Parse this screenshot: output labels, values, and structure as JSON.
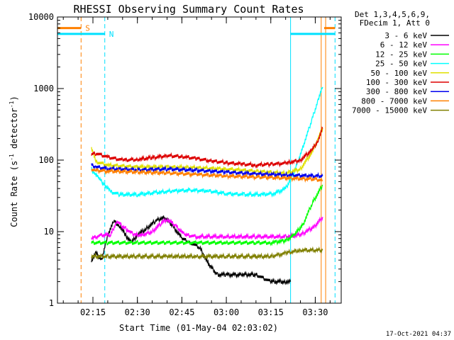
{
  "chart_data": {
    "type": "line",
    "title": "RHESSI Observing Summary Count Rates",
    "xlabel": "Start Time (01-May-04 02:03:02)",
    "ylabel_main": "Count Rate (s",
    "ylabel_exp1": "-1",
    "ylabel_mid": " detector",
    "ylabel_exp2": "-1",
    "ylabel_end": ")",
    "ylog": true,
    "ylim": [
      1,
      10000
    ],
    "xlim": [
      "02:03:02",
      "03:38:45"
    ],
    "xticks": [
      {
        "label": "02:15",
        "t": "02:15"
      },
      {
        "label": "02:30",
        "t": "02:30"
      },
      {
        "label": "02:45",
        "t": "02:45"
      },
      {
        "label": "03:00",
        "t": "03:00"
      },
      {
        "label": "03:15",
        "t": "03:15"
      },
      {
        "label": "03:30",
        "t": "03:30"
      }
    ],
    "yticks": [
      {
        "label": "1",
        "v": 1
      },
      {
        "label": "10",
        "v": 10
      },
      {
        "label": "100",
        "v": 100
      },
      {
        "label": "1000",
        "v": 1000
      },
      {
        "label": "10000",
        "v": 10000
      }
    ],
    "legend_header": [
      "Det 1,3,4,5,6,9,",
      "FDecim 1, Att 0"
    ],
    "legend_position": "outside-right",
    "series": [
      {
        "name": "3 - 6 keV",
        "color": "#000000",
        "x": [
          "02:14:30",
          "02:16:00",
          "02:18:00",
          "02:20:00",
          "02:22:00",
          "02:24:00",
          "02:26:00",
          "02:28:00",
          "02:30:00",
          "02:33:00",
          "02:36:00",
          "02:39:00",
          "02:42:00",
          "02:45:00",
          "02:48:00",
          "02:51:00",
          "02:54:00",
          "02:57:00",
          "03:00:00",
          "03:05:00",
          "03:10:00",
          "03:15:00",
          "03:20:00",
          "03:21:40"
        ],
        "y": [
          4,
          5,
          4,
          9,
          14,
          12,
          9,
          7,
          9,
          11,
          14,
          16,
          12,
          8,
          7,
          6,
          3.5,
          2.5,
          2.5,
          2.5,
          2.5,
          2,
          2,
          2
        ]
      },
      {
        "name": "6 - 12 keV",
        "color": "#ff00ff",
        "x": [
          "02:14:30",
          "02:18:00",
          "02:21:00",
          "02:23:00",
          "02:26:00",
          "02:29:00",
          "02:32:00",
          "02:35:00",
          "02:38:00",
          "02:40:00",
          "02:43:00",
          "02:46:00",
          "02:50:00",
          "03:00:00",
          "03:10:00",
          "03:20:00",
          "03:25:00",
          "03:30:00",
          "03:32:30"
        ],
        "y": [
          8,
          9,
          9,
          14,
          11,
          9,
          9,
          10,
          13,
          15,
          12,
          9,
          8.5,
          8.5,
          8.5,
          8.5,
          9,
          12,
          16
        ]
      },
      {
        "name": "12 - 25 keV",
        "color": "#00ff00",
        "x": [
          "02:14:30",
          "02:20:00",
          "02:30:00",
          "02:40:00",
          "02:50:00",
          "03:00:00",
          "03:10:00",
          "03:15:00",
          "03:20:00",
          "03:23:00",
          "03:26:00",
          "03:29:00",
          "03:32:30"
        ],
        "y": [
          7,
          7,
          7,
          7,
          7,
          7,
          7,
          7,
          7.5,
          9,
          13,
          25,
          45
        ]
      },
      {
        "name": "25 - 50 keV",
        "color": "#00ffff",
        "x": [
          "02:14:30",
          "02:17:00",
          "02:19:00",
          "02:21:00",
          "02:24:00",
          "02:30:00",
          "02:36:00",
          "02:42:00",
          "02:48:00",
          "02:54:00",
          "03:00:00",
          "03:06:00",
          "03:12:00",
          "03:16:00",
          "03:20:00",
          "03:23:00",
          "03:26:00",
          "03:29:00",
          "03:31:00",
          "03:32:30"
        ],
        "y": [
          75,
          55,
          45,
          36,
          33,
          33,
          35,
          37,
          38,
          37,
          34,
          33,
          33,
          34,
          40,
          70,
          160,
          380,
          700,
          1050
        ]
      },
      {
        "name": "50 - 100 keV",
        "color": "#e0e000",
        "x": [
          "02:14:30",
          "02:16:00",
          "02:20:00",
          "02:30:00",
          "02:40:00",
          "02:50:00",
          "03:00:00",
          "03:10:00",
          "03:20:00",
          "03:25:00",
          "03:29:00",
          "03:32:30"
        ],
        "y": [
          150,
          95,
          85,
          80,
          80,
          78,
          75,
          70,
          65,
          75,
          130,
          280
        ]
      },
      {
        "name": "100 - 300 keV",
        "color": "#dd0000",
        "x": [
          "02:14:30",
          "02:16:00",
          "02:20:00",
          "02:25:00",
          "02:30:00",
          "02:35:00",
          "02:40:00",
          "02:45:00",
          "02:50:00",
          "02:55:00",
          "03:00:00",
          "03:05:00",
          "03:10:00",
          "03:15:00",
          "03:20:00",
          "03:25:00",
          "03:29:00",
          "03:31:00",
          "03:32:30"
        ],
        "y": [
          120,
          125,
          110,
          100,
          102,
          108,
          115,
          112,
          105,
          97,
          92,
          88,
          85,
          88,
          90,
          100,
          140,
          190,
          280
        ]
      },
      {
        "name": "300 - 800 keV",
        "color": "#0000ee",
        "x": [
          "02:14:30",
          "02:16:00",
          "02:20:00",
          "02:30:00",
          "02:40:00",
          "02:50:00",
          "03:00:00",
          "03:10:00",
          "03:20:00",
          "03:30:00",
          "03:32:30"
        ],
        "y": [
          85,
          80,
          76,
          73,
          75,
          72,
          68,
          64,
          62,
          60,
          60
        ]
      },
      {
        "name": "800 - 7000 keV",
        "color": "#ff8000",
        "x": [
          "02:14:30",
          "02:16:00",
          "02:20:00",
          "02:30:00",
          "02:40:00",
          "02:50:00",
          "03:00:00",
          "03:10:00",
          "03:20:00",
          "03:30:00",
          "03:32:30"
        ],
        "y": [
          75,
          72,
          70,
          68,
          66,
          63,
          60,
          58,
          56,
          54,
          52
        ]
      },
      {
        "name": "7000 - 15000 keV",
        "color": "#808000",
        "x": [
          "02:14:30",
          "02:20:00",
          "02:30:00",
          "02:40:00",
          "02:50:00",
          "03:00:00",
          "03:10:00",
          "03:15:00",
          "03:20:00",
          "03:25:00",
          "03:32:30"
        ],
        "y": [
          4.5,
          4.5,
          4.5,
          4.5,
          4.5,
          4.5,
          4.5,
          4.5,
          5,
          5.5,
          5.5
        ]
      }
    ],
    "flag_bars": [
      {
        "label": "S",
        "color": "#ff8000",
        "segments": [
          [
            "02:03:02",
            "02:11:00"
          ],
          [
            "03:33:00",
            "03:36:40"
          ]
        ],
        "y": 7000
      },
      {
        "label": "N",
        "color": "#00e0ff",
        "segments": [
          [
            "02:03:02",
            "02:19:00"
          ],
          [
            "03:21:40",
            "03:36:40"
          ]
        ],
        "y": 5800
      }
    ],
    "vlines": [
      {
        "t": "02:03:02",
        "color": "#00e0ff",
        "dash": false
      },
      {
        "t": "02:11:00",
        "color": "#ff8000",
        "dash": true
      },
      {
        "t": "02:19:00",
        "color": "#00e0ff",
        "dash": true
      },
      {
        "t": "03:21:40",
        "color": "#00e0ff",
        "dash": false
      },
      {
        "t": "03:32:00",
        "color": "#ff8000",
        "dash": false
      },
      {
        "t": "03:33:30",
        "color": "#ff8000",
        "dash": false
      },
      {
        "t": "03:36:40",
        "color": "#00e0ff",
        "dash": true
      }
    ],
    "timestamp": "17-Oct-2021 04:37"
  }
}
